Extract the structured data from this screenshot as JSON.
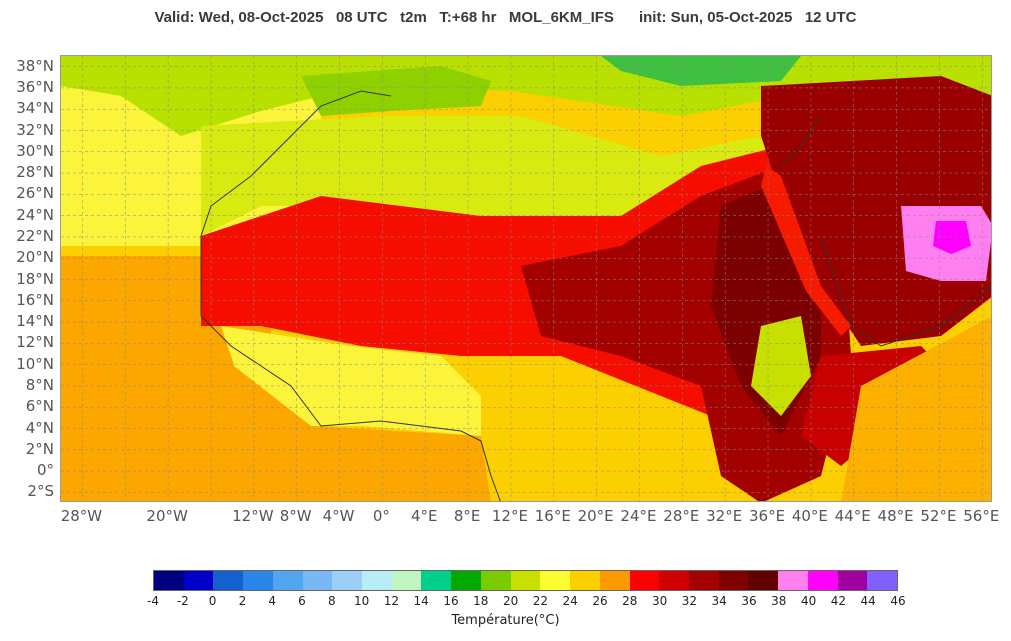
{
  "header": {
    "title": "Valid: Wed, 08-Oct-2025   08 UTC   t2m   T:+68 hr   MOL_6KM_IFS      init: Sun, 05-Oct-2025   12 UTC"
  },
  "map": {
    "lat_labels": [
      "38°N",
      "36°N",
      "34°N",
      "32°N",
      "30°N",
      "28°N",
      "26°N",
      "24°N",
      "22°N",
      "20°N",
      "18°N",
      "16°N",
      "14°N",
      "12°N",
      "10°N",
      "8°N",
      "6°N",
      "4°N",
      "2°N",
      "0°",
      "2°S"
    ],
    "lon_labels": [
      "28°W",
      "20°W",
      "12°W",
      "8°W",
      "4°W",
      "0°",
      "4°E",
      "8°E",
      "12°E",
      "16°E",
      "20°E",
      "24°E",
      "28°E",
      "32°E",
      "36°E",
      "40°E",
      "44°E",
      "48°E",
      "52°E",
      "56°E"
    ],
    "lat_range": [
      -3,
      39
    ],
    "lon_range": [
      -30,
      57
    ],
    "grid": true
  },
  "colorbar": {
    "label": "Température(°C)",
    "ticks": [
      "-4",
      "-2",
      "0",
      "2",
      "4",
      "6",
      "8",
      "10",
      "12",
      "14",
      "16",
      "18",
      "20",
      "22",
      "24",
      "26",
      "28",
      "30",
      "32",
      "34",
      "36",
      "38",
      "40",
      "42",
      "44",
      "46"
    ],
    "colors": [
      "#00007f",
      "#0000c8",
      "#1560d0",
      "#2a85e8",
      "#52a5ef",
      "#78b8f5",
      "#9ccff7",
      "#b8ecf7",
      "#c0f5c0",
      "#00d08c",
      "#00a800",
      "#7acc00",
      "#c8e000",
      "#fcfc30",
      "#fcd000",
      "#fc9a00",
      "#fc0000",
      "#d00000",
      "#a50000",
      "#800000",
      "#600000",
      "#ff7ff0",
      "#ff00ff",
      "#a000a0",
      "#8060ff"
    ]
  }
}
